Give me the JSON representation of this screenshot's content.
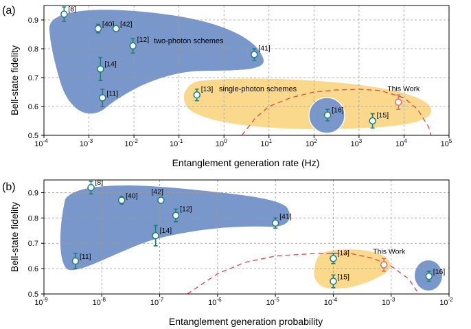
{
  "colors": {
    "two_photon_region": "#7a97cc",
    "single_photon_region": "#fbd98c",
    "point_stroke": "#1a7f7a",
    "this_work_stroke": "#d9706b",
    "theory_curve": "#d9534f",
    "grid": "#9a9a9a"
  },
  "chart_data": [
    {
      "panel": "(a)",
      "type": "scatter",
      "xscale": "log",
      "xlim": [
        0.0001,
        100000
      ],
      "ylim": [
        0.5,
        0.95
      ],
      "xlabel": "Entanglement generation rate (Hz)",
      "ylabel": "Bell-state fidelity",
      "xticks": [
        "10-4",
        "10-3",
        "10-2",
        "10-1",
        "100",
        "101",
        "102",
        "103",
        "104",
        "105"
      ],
      "yticks": [
        "0.5",
        "0.6",
        "0.7",
        "0.8",
        "0.9"
      ],
      "grid": true,
      "points": [
        {
          "label": "[8]",
          "x": 0.00028,
          "y": 0.92,
          "err": 0.025
        },
        {
          "label": "[40]",
          "x": 0.0016,
          "y": 0.87,
          "err": 0.015
        },
        {
          "label": "[42]",
          "x": 0.004,
          "y": 0.87,
          "err": 0.008
        },
        {
          "label": "[12]",
          "x": 0.0095,
          "y": 0.81,
          "err": 0.025
        },
        {
          "label": "[14]",
          "x": 0.0018,
          "y": 0.73,
          "err": 0.04
        },
        {
          "label": "[11]",
          "x": 0.002,
          "y": 0.63,
          "err": 0.03
        },
        {
          "label": "[41]",
          "x": 4.7,
          "y": 0.78,
          "err": 0.02
        },
        {
          "label": "[13]",
          "x": 0.25,
          "y": 0.64,
          "err": 0.02
        },
        {
          "label": "[16]",
          "x": 200,
          "y": 0.57,
          "err": 0.02
        },
        {
          "label": "[15]",
          "x": 2000,
          "y": 0.55,
          "err": 0.025
        },
        {
          "label": "This Work",
          "x": 7500,
          "y": 0.615,
          "err": 0.025,
          "highlight": true
        }
      ],
      "regions": [
        {
          "name": "two-photon schemes"
        },
        {
          "name": "single-photon schemes"
        }
      ],
      "curve": [
        [
          2.5,
          0.5
        ],
        [
          5,
          0.56
        ],
        [
          10,
          0.6
        ],
        [
          30,
          0.63
        ],
        [
          100,
          0.65
        ],
        [
          300,
          0.657
        ],
        [
          1000,
          0.66
        ],
        [
          3000,
          0.655
        ],
        [
          10000,
          0.63
        ],
        [
          20000,
          0.59
        ],
        [
          35000,
          0.53
        ],
        [
          40000,
          0.5
        ]
      ]
    },
    {
      "panel": "(b)",
      "type": "scatter",
      "xscale": "log",
      "xlim": [
        1e-09,
        0.01
      ],
      "ylim": [
        0.5,
        0.95
      ],
      "xlabel": "Entanglement generation probability",
      "ylabel": "Bell-state fidelity",
      "xticks": [
        "10-9",
        "10-8",
        "10-7",
        "10-6",
        "10-5",
        "10-4",
        "10-3",
        "10-2"
      ],
      "yticks": [
        "0.5",
        "0.6",
        "0.7",
        "0.8",
        "0.9"
      ],
      "grid": true,
      "points": [
        {
          "label": "[8]",
          "x": 6.5e-09,
          "y": 0.92,
          "err": 0.025
        },
        {
          "label": "[40]",
          "x": 2.2e-08,
          "y": 0.87,
          "err": 0.015
        },
        {
          "label": "[42]",
          "x": 1.05e-07,
          "y": 0.87,
          "err": 0.008
        },
        {
          "label": "[12]",
          "x": 1.9e-07,
          "y": 0.81,
          "err": 0.025
        },
        {
          "label": "[14]",
          "x": 8.5e-08,
          "y": 0.73,
          "err": 0.04
        },
        {
          "label": "[11]",
          "x": 3.5e-09,
          "y": 0.63,
          "err": 0.03
        },
        {
          "label": "[41]",
          "x": 1e-05,
          "y": 0.78,
          "err": 0.02
        },
        {
          "label": "[13]",
          "x": 0.0001,
          "y": 0.64,
          "err": 0.02
        },
        {
          "label": "[15]",
          "x": 0.0001,
          "y": 0.55,
          "err": 0.025
        },
        {
          "label": "This Work",
          "x": 0.00075,
          "y": 0.615,
          "err": 0.025,
          "highlight": true
        },
        {
          "label": "[16]",
          "x": 0.0045,
          "y": 0.57,
          "err": 0.02
        }
      ],
      "regions": [],
      "curve": [
        [
          3e-07,
          0.5
        ],
        [
          1e-06,
          0.58
        ],
        [
          3e-06,
          0.625
        ],
        [
          1e-05,
          0.65
        ],
        [
          5e-05,
          0.66
        ],
        [
          0.0002,
          0.66
        ],
        [
          0.0005,
          0.64
        ],
        [
          0.001,
          0.61
        ],
        [
          0.002,
          0.56
        ],
        [
          0.003,
          0.5
        ]
      ]
    }
  ]
}
